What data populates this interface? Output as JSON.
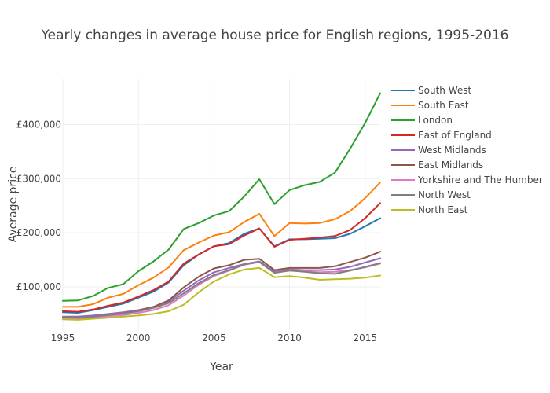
{
  "chart_data": {
    "type": "line",
    "title": "Yearly changes in average house price for English regions, 1995-2016",
    "xlabel": "Year",
    "ylabel": "Average price",
    "xlim": [
      1995,
      2016
    ],
    "ylim": [
      20000,
      485000
    ],
    "x_ticks": [
      1995,
      2000,
      2005,
      2010,
      2015
    ],
    "y_ticks": [
      100000,
      200000,
      300000,
      400000
    ],
    "y_tick_labels": [
      "£100,000",
      "£200,000",
      "£300,000",
      "£400,000"
    ],
    "grid": true,
    "legend_position": "right",
    "x": [
      1995,
      1996,
      1997,
      1998,
      1999,
      2000,
      2001,
      2002,
      2003,
      2004,
      2005,
      2006,
      2007,
      2008,
      2009,
      2010,
      2011,
      2012,
      2013,
      2014,
      2015,
      2016
    ],
    "series": [
      {
        "name": "South West",
        "color": "#1f77b4",
        "values": [
          53000,
          52000,
          57000,
          63000,
          69000,
          80000,
          91000,
          108000,
          140000,
          160000,
          175000,
          181000,
          198000,
          208000,
          175000,
          188000,
          188000,
          189000,
          190000,
          198000,
          212000,
          227000
        ]
      },
      {
        "name": "South East",
        "color": "#ff7f0e",
        "values": [
          63000,
          63000,
          68000,
          80000,
          87000,
          103000,
          117000,
          136000,
          168000,
          182000,
          195000,
          201000,
          220000,
          235000,
          194000,
          218000,
          217000,
          218000,
          225000,
          240000,
          264000,
          293000
        ]
      },
      {
        "name": "London",
        "color": "#2ca02c",
        "values": [
          74000,
          75000,
          83000,
          98000,
          105000,
          129000,
          147000,
          169000,
          207000,
          218000,
          232000,
          240000,
          267000,
          299000,
          253000,
          279000,
          288000,
          294000,
          311000,
          355000,
          403000,
          458000
        ]
      },
      {
        "name": "East of England",
        "color": "#d62728",
        "values": [
          55000,
          54000,
          58000,
          65000,
          71000,
          82000,
          94000,
          110000,
          143000,
          160000,
          175000,
          179000,
          195000,
          208000,
          174000,
          187000,
          189000,
          191000,
          194000,
          205000,
          227000,
          255000
        ]
      },
      {
        "name": "West Midlands",
        "color": "#9467bd",
        "values": [
          45000,
          45000,
          47000,
          50000,
          53000,
          57000,
          63000,
          73000,
          93000,
          112000,
          127000,
          135000,
          142000,
          147000,
          128000,
          132000,
          131000,
          131000,
          132000,
          137000,
          145000,
          153000
        ]
      },
      {
        "name": "East Midlands",
        "color": "#8c564b",
        "values": [
          43000,
          42000,
          44000,
          48000,
          51000,
          56000,
          63000,
          75000,
          99000,
          119000,
          134000,
          140000,
          150000,
          152000,
          131000,
          135000,
          135000,
          135000,
          138000,
          146000,
          154000,
          165000
        ]
      },
      {
        "name": "Yorkshire and The Humber",
        "color": "#e377c2",
        "values": [
          42000,
          41000,
          43000,
          46000,
          48000,
          52000,
          57000,
          66000,
          84000,
          104000,
          120000,
          130000,
          141000,
          146000,
          126000,
          131000,
          129000,
          127000,
          128000,
          131000,
          136000,
          143000
        ]
      },
      {
        "name": "North West",
        "color": "#7f7f7f",
        "values": [
          44000,
          43000,
          45000,
          48000,
          51000,
          55000,
          61000,
          70000,
          88000,
          107000,
          122000,
          131000,
          141000,
          146000,
          126000,
          130000,
          128000,
          125000,
          124000,
          130000,
          137000,
          144000
        ]
      },
      {
        "name": "North East",
        "color": "#bcbd22",
        "values": [
          40000,
          39000,
          41000,
          43000,
          45000,
          47000,
          50000,
          55000,
          67000,
          90000,
          110000,
          123000,
          132000,
          135000,
          118000,
          120000,
          117000,
          113000,
          114000,
          115000,
          117000,
          121000
        ]
      }
    ]
  }
}
